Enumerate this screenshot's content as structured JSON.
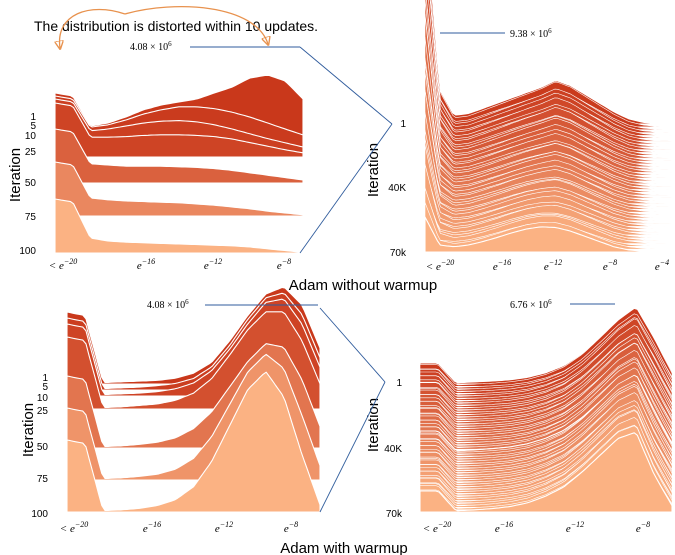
{
  "annotation": "The distribution is distorted within 10 updates.",
  "colors": {
    "light": "#fbb283",
    "dark": "#c9381b",
    "connector": "#2f5b9c",
    "arrow": "#e8924e"
  },
  "sections": [
    {
      "title": "Adam without warmup"
    },
    {
      "title": "Adam with warmup"
    }
  ],
  "chart_data": [
    {
      "type": "area",
      "subtype": "ridgeline",
      "panel": "top-left",
      "xlabel": "",
      "ylabel": "Iteration",
      "xticks": [
        "< e^{-20}",
        "e^{-16}",
        "e^{-12}",
        "e^{-8}"
      ],
      "x": [
        -21,
        -20,
        -19,
        -18,
        -17,
        -16,
        -15,
        -14,
        -13,
        -12,
        -11,
        -10,
        -9,
        -8,
        -7
      ],
      "yticks": [
        "1",
        "5",
        "10",
        "25",
        "50",
        "75",
        "100"
      ],
      "peak_label": "4.08 × 10^6",
      "series": [
        {
          "name": "100",
          "values": [
            0.9,
            0.85,
            0.25,
            0.2,
            0.18,
            0.17,
            0.16,
            0.15,
            0.14,
            0.13,
            0.12,
            0.1,
            0.07,
            0.04,
            0.01
          ]
        },
        {
          "name": "75",
          "values": [
            0.9,
            0.85,
            0.3,
            0.27,
            0.25,
            0.24,
            0.23,
            0.22,
            0.2,
            0.18,
            0.15,
            0.12,
            0.08,
            0.05,
            0.02
          ]
        },
        {
          "name": "50",
          "values": [
            0.9,
            0.85,
            0.32,
            0.3,
            0.28,
            0.28,
            0.28,
            0.27,
            0.26,
            0.24,
            0.21,
            0.17,
            0.13,
            0.09,
            0.05
          ]
        },
        {
          "name": "25",
          "values": [
            0.9,
            0.85,
            0.33,
            0.33,
            0.34,
            0.36,
            0.37,
            0.37,
            0.36,
            0.34,
            0.3,
            0.24,
            0.18,
            0.12,
            0.07
          ]
        },
        {
          "name": "10",
          "values": [
            0.9,
            0.85,
            0.37,
            0.4,
            0.45,
            0.5,
            0.53,
            0.54,
            0.52,
            0.47,
            0.4,
            0.32,
            0.24,
            0.17,
            0.1
          ]
        },
        {
          "name": "5",
          "values": [
            0.9,
            0.85,
            0.38,
            0.42,
            0.5,
            0.6,
            0.67,
            0.72,
            0.72,
            0.69,
            0.63,
            0.55,
            0.45,
            0.35,
            0.25
          ]
        },
        {
          "name": "1",
          "values": [
            0.9,
            0.85,
            0.35,
            0.4,
            0.5,
            0.62,
            0.7,
            0.75,
            0.8,
            0.9,
            1.0,
            1.15,
            1.2,
            1.1,
            0.8
          ]
        }
      ]
    },
    {
      "type": "area",
      "subtype": "ridgeline",
      "panel": "top-right",
      "xlabel": "",
      "ylabel": "Iteration",
      "xticks": [
        "< e^{-20}",
        "e^{-16}",
        "e^{-12}",
        "e^{-8}",
        "e^{-4}"
      ],
      "x": [
        -21,
        -20,
        -19,
        -18,
        -17,
        -16,
        -15,
        -14,
        -13,
        -12,
        -11,
        -10,
        -9,
        -8,
        -7,
        -6,
        -5,
        -4
      ],
      "yticks": [
        "1",
        "40K",
        "70k"
      ],
      "peak_label": "9.38 × 10^6",
      "series": [
        {
          "name": "70k",
          "values": [
            1.0,
            0.2,
            0.15,
            0.2,
            0.3,
            0.42,
            0.55,
            0.66,
            0.72,
            0.7,
            0.6,
            0.45,
            0.3,
            0.15,
            0.06,
            0.02,
            0.0,
            0.0
          ]
        },
        {
          "name": "40K",
          "values": [
            1.0,
            0.2,
            0.15,
            0.18,
            0.25,
            0.33,
            0.42,
            0.5,
            0.55,
            0.55,
            0.48,
            0.38,
            0.25,
            0.13,
            0.05,
            0.02,
            0.0,
            0.0
          ]
        },
        {
          "name": "1",
          "values": [
            6.0,
            1.0,
            0.25,
            0.3,
            0.45,
            0.6,
            0.75,
            0.9,
            1.05,
            1.25,
            1.1,
            0.85,
            0.6,
            0.35,
            0.15,
            0.05,
            0.01,
            0.0
          ]
        }
      ]
    },
    {
      "type": "area",
      "subtype": "ridgeline",
      "panel": "bottom-left",
      "xlabel": "",
      "ylabel": "Iteration",
      "xticks": [
        "< e^{-20}",
        "e^{-16}",
        "e^{-12}",
        "e^{-8}"
      ],
      "x": [
        -21,
        -20,
        -19,
        -18,
        -17,
        -16,
        -15,
        -14,
        -13,
        -12,
        -11,
        -10,
        -9,
        -8,
        -7
      ],
      "yticks": [
        "1",
        "5",
        "10",
        "25",
        "50",
        "75",
        "100"
      ],
      "peak_label": "4.08 × 10^6",
      "series": [
        {
          "name": "100",
          "values": [
            1.0,
            0.95,
            0.02,
            0.03,
            0.05,
            0.09,
            0.17,
            0.35,
            0.7,
            1.2,
            1.7,
            1.95,
            1.6,
            0.8,
            0.1
          ]
        },
        {
          "name": "75",
          "values": [
            1.0,
            0.95,
            0.02,
            0.03,
            0.05,
            0.08,
            0.15,
            0.3,
            0.6,
            1.05,
            1.5,
            1.75,
            1.55,
            0.9,
            0.2
          ]
        },
        {
          "name": "50",
          "values": [
            1.0,
            0.95,
            0.02,
            0.03,
            0.05,
            0.08,
            0.14,
            0.27,
            0.5,
            0.85,
            1.2,
            1.45,
            1.4,
            0.95,
            0.3
          ]
        },
        {
          "name": "25",
          "values": [
            1.0,
            0.95,
            0.02,
            0.03,
            0.05,
            0.07,
            0.12,
            0.22,
            0.42,
            0.75,
            1.1,
            1.35,
            1.35,
            0.95,
            0.35
          ]
        },
        {
          "name": "10",
          "values": [
            1.0,
            0.95,
            0.02,
            0.03,
            0.04,
            0.06,
            0.1,
            0.18,
            0.35,
            0.65,
            1.0,
            1.3,
            1.35,
            1.0,
            0.4
          ]
        },
        {
          "name": "5",
          "values": [
            1.0,
            0.95,
            0.02,
            0.03,
            0.04,
            0.06,
            0.09,
            0.16,
            0.32,
            0.62,
            0.98,
            1.28,
            1.35,
            1.05,
            0.45
          ]
        },
        {
          "name": "1",
          "values": [
            1.0,
            0.95,
            0.02,
            0.03,
            0.04,
            0.05,
            0.08,
            0.15,
            0.3,
            0.6,
            0.95,
            1.25,
            1.35,
            1.1,
            0.5
          ]
        }
      ]
    },
    {
      "type": "area",
      "subtype": "ridgeline",
      "panel": "bottom-right",
      "xlabel": "",
      "ylabel": "Iteration",
      "xticks": [
        "< e^{-20}",
        "e^{-16}",
        "e^{-12}",
        "e^{-8}"
      ],
      "x": [
        -21,
        -20,
        -19,
        -18,
        -17,
        -16,
        -15,
        -14,
        -13,
        -12,
        -11,
        -10,
        -9,
        -8,
        -7
      ],
      "yticks": [
        "1",
        "40K",
        "70k"
      ],
      "peak_label": "6.76 × 10^6",
      "series": [
        {
          "name": "70k",
          "values": [
            0.5,
            0.5,
            0.03,
            0.05,
            0.08,
            0.13,
            0.22,
            0.38,
            0.6,
            0.95,
            1.35,
            1.75,
            1.9,
            0.9,
            0.15
          ]
        },
        {
          "name": "40K",
          "values": [
            0.5,
            0.5,
            0.03,
            0.05,
            0.08,
            0.12,
            0.2,
            0.33,
            0.52,
            0.82,
            1.2,
            1.6,
            1.85,
            1.0,
            0.2
          ]
        },
        {
          "name": "1",
          "values": [
            0.5,
            0.5,
            0.03,
            0.05,
            0.07,
            0.1,
            0.16,
            0.27,
            0.44,
            0.72,
            1.1,
            1.5,
            1.8,
            1.1,
            0.3
          ]
        }
      ]
    }
  ]
}
